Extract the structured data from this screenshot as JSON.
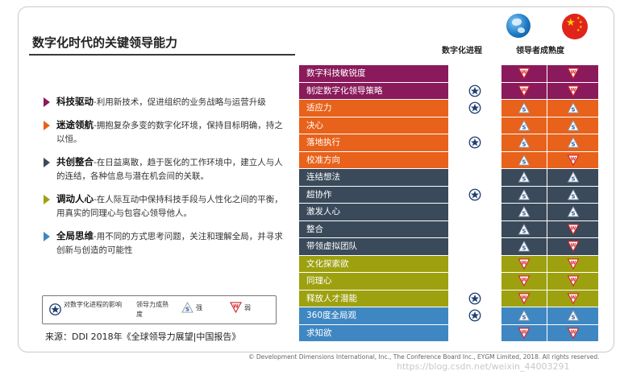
{
  "title": "数字化时代的关键领导能力",
  "columns": {
    "progress": "数字化进程",
    "maturity": "领导者成熟度"
  },
  "colors": {
    "purple": "#8a1a5b",
    "orange": "#e8621b",
    "slate": "#3a4a5a",
    "olive": "#9ea10f",
    "blue": "#3f87c2"
  },
  "items": [
    {
      "name": "科技驱动",
      "desc": "-利用新技术，促进组织的业务战略与运营升级",
      "color": "#8a1a5b"
    },
    {
      "name": "迷途领航",
      "desc": "-拥抱复杂多变的数字化环境，保持目标明确，持之以恒。",
      "color": "#e8621b"
    },
    {
      "name": "共创整合",
      "desc": "-在日益离散，趋于医化的工作环境中，建立人与人的连结，各种信息与潜在机会间的关联。",
      "color": "#3a4a5a"
    },
    {
      "name": "调动人心",
      "desc": "-在人际互动中保持科技手段与人性化之间的平衡，用真实的同理心与包容心领导他人。",
      "color": "#9ea10f"
    },
    {
      "name": "全局思维",
      "desc": "-用不同的方式思考问题，关注和理解全局，并寻求创新与创造的可能性",
      "color": "#3f87c2"
    }
  ],
  "legend": {
    "star_label": "对数字化进程的影响",
    "maturity_label": "领导力成熟度",
    "s_label": "强",
    "w_label": "弱",
    "s_letter": "S",
    "w_letter": "W"
  },
  "rows": [
    {
      "label": "数字科技敏锐度",
      "group": "purple",
      "star": false,
      "global": "W",
      "china": "W"
    },
    {
      "label": "制定数字化领导策略",
      "group": "purple",
      "star": true,
      "global": "W",
      "china": "W"
    },
    {
      "label": "适应力",
      "group": "orange",
      "star": true,
      "global": "S",
      "china": "S"
    },
    {
      "label": "决心",
      "group": "orange",
      "star": false,
      "global": "S",
      "china": "S"
    },
    {
      "label": "落地执行",
      "group": "orange",
      "star": true,
      "global": "S",
      "china": "S"
    },
    {
      "label": "校准方向",
      "group": "orange",
      "star": false,
      "global": "S",
      "china": "W"
    },
    {
      "label": "连结想法",
      "group": "slate",
      "star": false,
      "global": "S",
      "china": "S"
    },
    {
      "label": "超协作",
      "group": "slate",
      "star": true,
      "global": "S",
      "china": "S"
    },
    {
      "label": "激发人心",
      "group": "slate",
      "star": false,
      "global": "S",
      "china": "S"
    },
    {
      "label": "整合",
      "group": "slate",
      "star": false,
      "global": "S",
      "china": "W"
    },
    {
      "label": "带领虚拟团队",
      "group": "slate",
      "star": false,
      "global": "S",
      "china": "W"
    },
    {
      "label": "文化探索欲",
      "group": "olive",
      "star": false,
      "global": "W",
      "china": "W"
    },
    {
      "label": "同理心",
      "group": "olive",
      "star": false,
      "global": "W",
      "china": "W"
    },
    {
      "label": "释放人才潜能",
      "group": "olive",
      "star": true,
      "global": "W",
      "china": "W"
    },
    {
      "label": "360度全局观",
      "group": "blue",
      "star": true,
      "global": "S",
      "china": "S"
    },
    {
      "label": "求知欲",
      "group": "blue",
      "star": false,
      "global": "W",
      "china": "W"
    }
  ],
  "source": "来源：DDI 2018年《全球领导力展望|中国报告》",
  "copyright": "© Development Dimensions International, Inc., The Conference Board Inc., EYGM Limited, 2018. All rights reserved.",
  "watermark": "https://blog.csdn.net/weixin_44003291"
}
